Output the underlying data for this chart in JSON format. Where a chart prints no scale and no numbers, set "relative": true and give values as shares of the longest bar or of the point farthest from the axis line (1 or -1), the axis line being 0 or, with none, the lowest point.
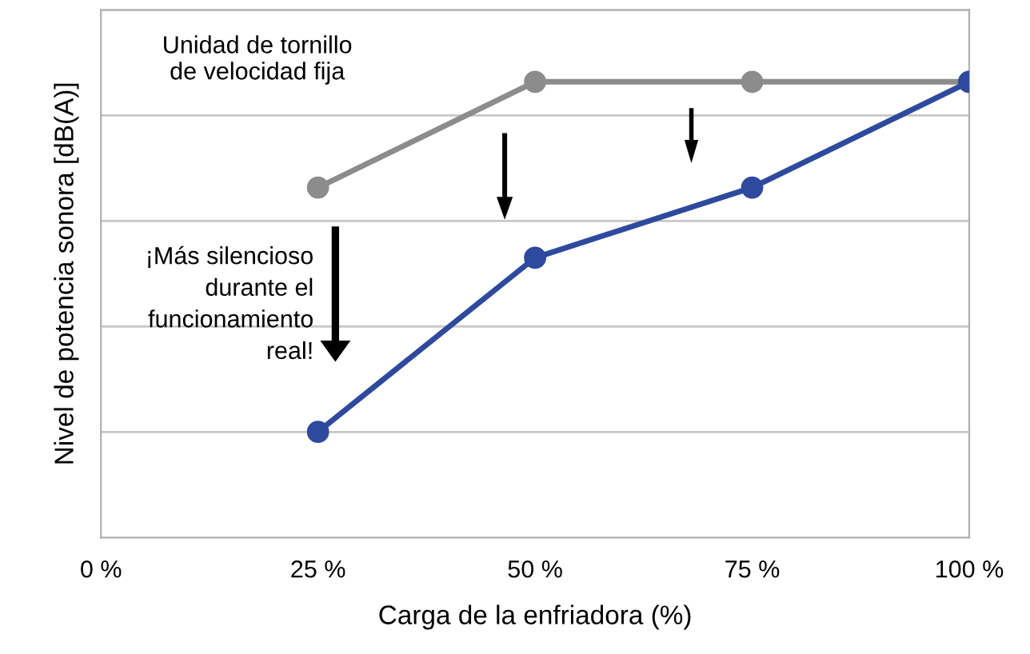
{
  "chart_data": {
    "type": "line",
    "relative": true,
    "xlabel": "Carga de la enfriadora (%)",
    "ylabel": "Nivel de potencia sonora [dB(A)]",
    "xlim": [
      0,
      100
    ],
    "xticks": [
      {
        "value": 0,
        "label": "0 %"
      },
      {
        "value": 25,
        "label": "25 %"
      },
      {
        "value": 50,
        "label": "50 %"
      },
      {
        "value": 75,
        "label": "75 %"
      },
      {
        "value": 100,
        "label": "100 %"
      }
    ],
    "x": [
      25,
      50,
      75,
      100
    ],
    "series": [
      {
        "name": "Unidad de tornillo\nde velocidad fija",
        "color": "#8c8c8c",
        "values": [
          0.768,
          1,
          1,
          1
        ]
      },
      {
        "color": "#2e4a9e",
        "values": [
          0.232,
          0.614,
          0.768,
          1
        ]
      }
    ],
    "annotations": [
      "¡Más silencioso\ndurante el\nfuncionamiento\nreal!"
    ],
    "grid": "y",
    "marker": "circle",
    "line_style": "solid"
  }
}
